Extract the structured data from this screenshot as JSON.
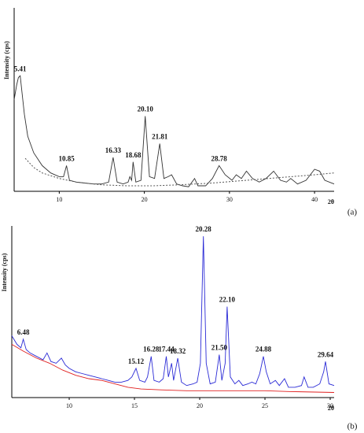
{
  "chart_data": [
    {
      "type": "line",
      "panel_label": "(a)",
      "x_label": "2θ",
      "y_label": "Intensity (cps)",
      "xlim": [
        4.7,
        42.3
      ],
      "ylim": [
        0,
        100
      ],
      "xticks": [
        10,
        20,
        30,
        40
      ],
      "series": [
        {
          "color": "#333333",
          "style": "solid",
          "x": [
            4.7,
            5.0,
            5.2,
            5.41,
            5.6,
            5.9,
            6.3,
            7,
            8,
            9,
            10,
            10.5,
            10.85,
            11.2,
            12,
            13,
            14,
            15,
            15.8,
            16.33,
            16.8,
            17.5,
            18.1,
            18.3,
            18.5,
            18.68,
            19.0,
            19.6,
            20.1,
            20.6,
            21.2,
            21.81,
            22.3,
            22.8,
            23.2,
            23.8,
            24.5,
            25.2,
            25.9,
            26.3,
            27.2,
            28.0,
            28.78,
            29.5,
            30.3,
            30.8,
            31.4,
            32.0,
            32.7,
            33.5,
            34.3,
            35.2,
            36.0,
            36.7,
            37.2,
            38.0,
            39.0,
            40.0,
            40.6,
            41.2,
            42.3
          ],
          "values": [
            50,
            58,
            62,
            63,
            55,
            42,
            30,
            21,
            14,
            10,
            8,
            8,
            14,
            6,
            5,
            4.5,
            4,
            4,
            5,
            18.5,
            5,
            4,
            5,
            8,
            6,
            16,
            5,
            6,
            41,
            8,
            7,
            26,
            7,
            8,
            9,
            4,
            3,
            2.5,
            7,
            3,
            3,
            7,
            14,
            9,
            6,
            9,
            7,
            11,
            7,
            5,
            7,
            11,
            6,
            5,
            7,
            4,
            6,
            12,
            11,
            6,
            4
          ]
        },
        {
          "color": "#555555",
          "style": "dotted",
          "x": [
            6,
            7,
            8,
            10,
            12,
            15,
            18,
            21,
            24,
            28,
            32,
            36,
            40,
            42.3
          ],
          "values": [
            18,
            13,
            10,
            7,
            5,
            3.5,
            3,
            3,
            3.5,
            4.5,
            6,
            7.5,
            9,
            10
          ]
        }
      ],
      "annotations": [
        {
          "text": "5.41",
          "x": 5.41,
          "y": 63
        },
        {
          "text": "10.85",
          "x": 10.85,
          "y": 14
        },
        {
          "text": "16.33",
          "x": 16.33,
          "y": 18.5
        },
        {
          "text": "18.68",
          "x": 18.68,
          "y": 16
        },
        {
          "text": "20.10",
          "x": 20.1,
          "y": 41
        },
        {
          "text": "21.81",
          "x": 21.81,
          "y": 26
        },
        {
          "text": "28.78",
          "x": 28.78,
          "y": 14
        }
      ]
    },
    {
      "type": "line",
      "panel_label": "(b)",
      "x_label": "2θ",
      "y_label": "Intensity (cps)",
      "xlim": [
        5.6,
        30.3
      ],
      "ylim": [
        0,
        100
      ],
      "xticks": [
        10,
        15,
        20,
        25,
        30
      ],
      "series": [
        {
          "color": "#2b2bd6",
          "style": "solid",
          "x": [
            5.6,
            6.0,
            6.3,
            6.48,
            6.7,
            7.0,
            7.5,
            8.0,
            8.3,
            8.6,
            9.0,
            9.4,
            9.7,
            10.0,
            10.5,
            11,
            11.5,
            12,
            12.5,
            13,
            13.5,
            14,
            14.5,
            14.8,
            15.12,
            15.4,
            15.8,
            16.0,
            16.28,
            16.5,
            16.9,
            17.2,
            17.44,
            17.6,
            17.85,
            18.0,
            18.32,
            18.6,
            19.0,
            19.5,
            19.8,
            20.05,
            20.28,
            20.5,
            20.8,
            21.2,
            21.5,
            21.7,
            21.95,
            22.1,
            22.35,
            22.7,
            23.0,
            23.3,
            23.7,
            24.0,
            24.3,
            24.6,
            24.88,
            25.1,
            25.4,
            25.8,
            26.1,
            26.5,
            26.8,
            27.3,
            27.8,
            28.0,
            28.3,
            28.7,
            29.2,
            29.5,
            29.64,
            29.9,
            30.3
          ],
          "values": [
            36,
            31,
            29,
            34,
            28,
            26,
            24,
            22,
            26,
            21,
            20,
            23,
            19,
            17,
            15,
            14,
            13,
            12,
            11,
            10,
            9,
            9,
            10,
            12,
            17,
            10,
            9,
            12,
            24,
            10,
            9,
            11,
            24,
            12,
            20,
            10,
            23,
            9,
            7,
            8,
            9,
            20,
            94,
            20,
            8,
            9,
            25,
            10,
            20,
            53,
            12,
            8,
            10,
            7,
            8,
            9,
            8,
            14,
            24,
            15,
            8,
            10,
            7,
            11,
            6,
            6,
            7,
            12,
            6,
            6,
            8,
            15,
            21,
            8,
            7
          ]
        },
        {
          "color": "#e02020",
          "style": "solid",
          "x": [
            5.6,
            6.5,
            7.5,
            8.5,
            9.5,
            10.5,
            11.5,
            12.5,
            13.5,
            14.5,
            15.5,
            17,
            19,
            21,
            23,
            25,
            27,
            30.3
          ],
          "values": [
            31,
            27,
            23,
            20,
            16,
            13,
            11,
            10,
            8,
            6,
            5,
            4.5,
            4,
            4,
            4,
            4,
            3.5,
            3
          ]
        }
      ],
      "annotations": [
        {
          "text": "6.48",
          "x": 6.48,
          "y": 34
        },
        {
          "text": "15.12",
          "x": 15.12,
          "y": 17
        },
        {
          "text": "16.28",
          "x": 16.28,
          "y": 24
        },
        {
          "text": "17.44",
          "x": 17.44,
          "y": 24
        },
        {
          "text": "18.32",
          "x": 18.32,
          "y": 23
        },
        {
          "text": "20.28",
          "x": 20.28,
          "y": 94
        },
        {
          "text": "21.50",
          "x": 21.5,
          "y": 25
        },
        {
          "text": "22.10",
          "x": 22.1,
          "y": 53
        },
        {
          "text": "24.88",
          "x": 24.88,
          "y": 24
        },
        {
          "text": "29.64",
          "x": 29.64,
          "y": 21
        }
      ]
    }
  ]
}
